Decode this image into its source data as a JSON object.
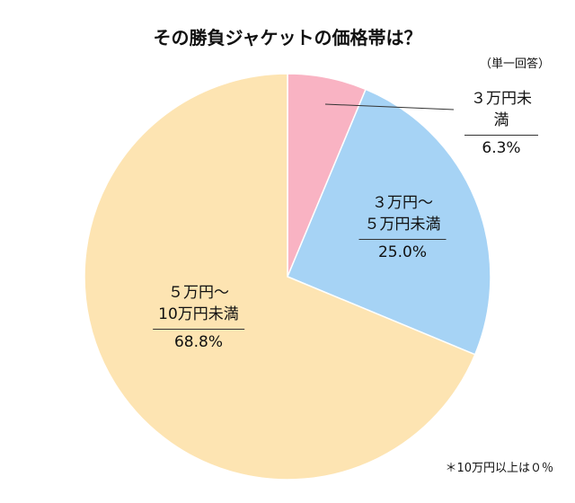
{
  "chart_data": {
    "type": "pie",
    "title": "その勝負ジャケットの価格帯は？",
    "subtitle": "（単一回答）",
    "categories": [
      "３万円未満",
      "３万円〜\n５万円未満",
      "５万円〜\n10万円未満"
    ],
    "values": [
      6.3,
      25.0,
      68.8
    ],
    "value_labels": [
      "6.3%",
      "25.0%",
      "68.8%"
    ],
    "colors": [
      "#f9b3c3",
      "#a6d3f5",
      "#fde4b2"
    ],
    "note": "＊10万円以上は０％"
  }
}
